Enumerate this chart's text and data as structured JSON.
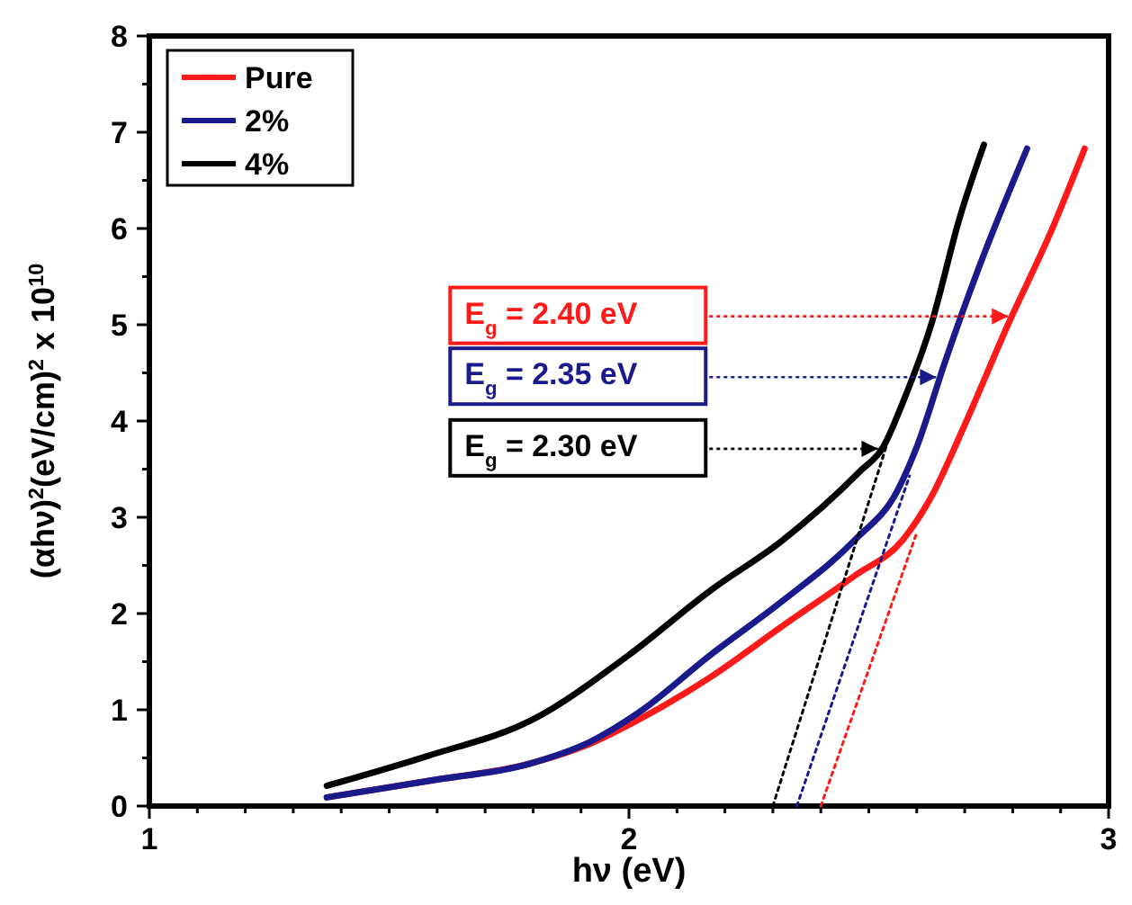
{
  "chart_data": {
    "type": "line",
    "xlabel": "hν (eV)",
    "ylabel": "(αhν)$^{2}$(eV/cm)$^{2}$ x 10$^{10}$",
    "xlim": [
      1,
      3
    ],
    "ylim": [
      0,
      8
    ],
    "xticks": [
      1,
      {
        "value": 1.1,
        "label": null
      },
      {
        "value": 1.2,
        "label": null
      },
      {
        "value": 1.3,
        "label": null
      },
      {
        "value": 1.4,
        "label": null
      },
      {
        "value": 1.5,
        "label": null
      },
      {
        "value": 1.6,
        "label": null
      },
      {
        "value": 1.7,
        "label": null
      },
      {
        "value": 1.8,
        "label": null
      },
      {
        "value": 1.9,
        "label": null
      },
      2,
      {
        "value": 2.1,
        "label": null
      },
      {
        "value": 2.2,
        "label": null
      },
      {
        "value": 2.3,
        "label": null
      },
      {
        "value": 2.4,
        "label": null
      },
      {
        "value": 2.5,
        "label": null
      },
      {
        "value": 2.6,
        "label": null
      },
      {
        "value": 2.7,
        "label": null
      },
      {
        "value": 2.8,
        "label": null
      },
      {
        "value": 2.9,
        "label": null
      },
      3
    ],
    "yticks": [
      0,
      {
        "value": 0.5,
        "label": null
      },
      1,
      {
        "value": 1.5,
        "label": null
      },
      2,
      {
        "value": 2.5,
        "label": null
      },
      3,
      {
        "value": 3.5,
        "label": null
      },
      4,
      {
        "value": 4.5,
        "label": null
      },
      5,
      {
        "value": 5.5,
        "label": null
      },
      6,
      {
        "value": 6.5,
        "label": null
      },
      7,
      {
        "value": 7.5,
        "label": null
      },
      8
    ],
    "grid": false,
    "legend": "top left",
    "marker": "none",
    "line_style": "solid",
    "series": [
      {
        "name": "Pure",
        "color": "#ff1a1a",
        "x": [
          1.37,
          1.58,
          1.8,
          1.92,
          2.01,
          2.17,
          2.32,
          2.47,
          2.57,
          2.63,
          2.7,
          2.79,
          2.88,
          2.95
        ],
        "values": [
          0.09,
          0.26,
          0.45,
          0.65,
          0.87,
          1.34,
          1.87,
          2.39,
          2.76,
          3.21,
          3.96,
          5.0,
          5.97,
          6.83
        ]
      },
      {
        "name": "2%",
        "color": "#1a1a8c",
        "x": [
          1.37,
          1.58,
          1.8,
          1.92,
          2.02,
          2.17,
          2.32,
          2.47,
          2.56,
          2.6,
          2.66,
          2.73,
          2.83
        ],
        "values": [
          0.09,
          0.26,
          0.45,
          0.67,
          0.97,
          1.57,
          2.13,
          2.76,
          3.28,
          3.73,
          4.63,
          5.6,
          6.83
        ]
      },
      {
        "name": "4%",
        "color": "#000000",
        "x": [
          1.37,
          1.58,
          1.8,
          2.0,
          2.17,
          2.32,
          2.48,
          2.53,
          2.57,
          2.63,
          2.69,
          2.74
        ],
        "values": [
          0.21,
          0.52,
          0.9,
          1.57,
          2.24,
          2.76,
          3.47,
          3.73,
          4.18,
          5.0,
          6.12,
          6.87
        ]
      },
      {
        "color": "#ff1a1a",
        "line_style": "dotted",
        "x": [
          2.4,
          2.6
        ],
        "values": [
          0,
          2.84
        ]
      },
      {
        "color": "#1a1a8c",
        "line_style": "dotted",
        "x": [
          2.35,
          2.585
        ],
        "values": [
          0,
          3.43
        ]
      },
      {
        "color": "#000000",
        "line_style": "dotted",
        "x": [
          2.3,
          2.555
        ],
        "values": [
          0,
          4.03
        ]
      }
    ],
    "annotations": [
      "E$_{g}$ = 2.40 eV",
      "E$_{g}$ = 2.35 eV",
      "E$_{g}$ = 2.30 eV"
    ]
  }
}
